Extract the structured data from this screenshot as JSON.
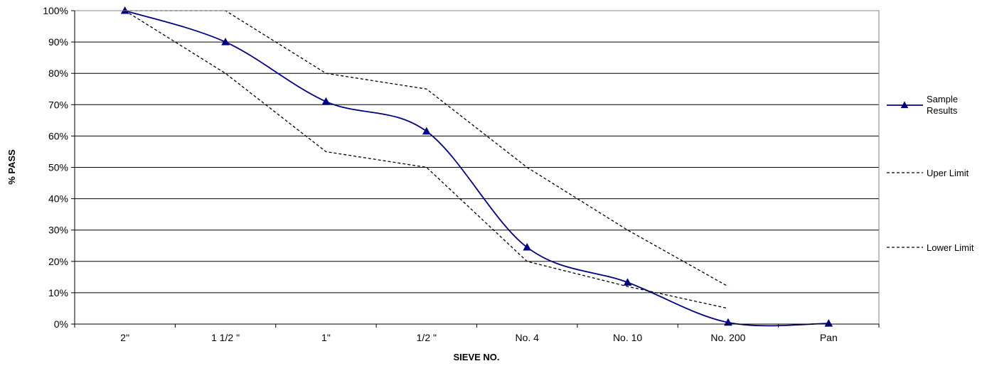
{
  "chart_data": {
    "type": "line",
    "categories": [
      "2\"",
      "1 1/2 \"",
      "1\"",
      "1/2 \"",
      "No. 4",
      "No. 10",
      "No. 200",
      "Pan"
    ],
    "ylabel": "% PASS",
    "xlabel": "SIEVE NO.",
    "ylim": [
      0,
      100
    ],
    "yticks": [
      "0%",
      "10%",
      "20%",
      "30%",
      "40%",
      "50%",
      "60%",
      "70%",
      "80%",
      "90%",
      "100%"
    ],
    "grid": "horizontal",
    "legend_position": "right",
    "series": [
      {
        "name": "Sample Results",
        "values": [
          100,
          90,
          71,
          61.5,
          24.5,
          13.3,
          0.5,
          0.2
        ],
        "color": "#000080",
        "style": "solid",
        "marker": "triangle"
      },
      {
        "name": "Uper Limit",
        "values": [
          100,
          100,
          80,
          75,
          50,
          30,
          12,
          null
        ],
        "color": "#000000",
        "style": "dashed"
      },
      {
        "name": "Lower Limit",
        "values": [
          100,
          80,
          55,
          50,
          20,
          12,
          5,
          null
        ],
        "color": "#000000",
        "style": "dashed"
      }
    ]
  }
}
